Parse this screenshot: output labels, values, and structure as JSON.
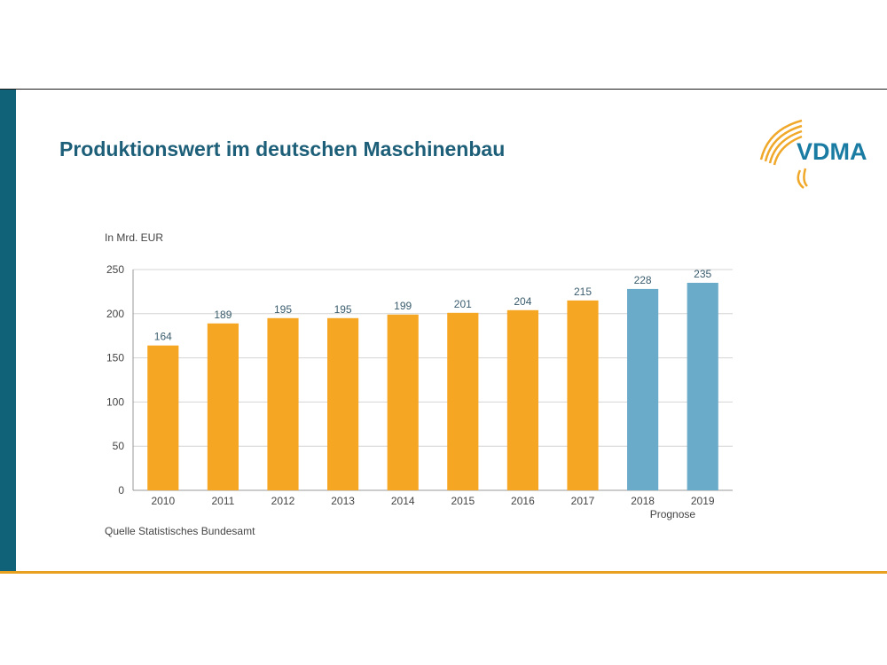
{
  "slide": {
    "title": "Produktionswert im deutschen Maschinenbau",
    "logo_text": "VDMA",
    "unit": "In Mrd. EUR",
    "source": "Quelle Statistisches Bundesamt",
    "accent_colors": {
      "sidebar": "#0f6277",
      "bottom_rule": "#e8a020",
      "title": "#1d5f78"
    }
  },
  "chart_data": {
    "type": "bar",
    "title": "Produktionswert im deutschen Maschinenbau",
    "ylabel": "In Mrd. EUR",
    "xlabel": "",
    "categories": [
      "2010",
      "2011",
      "2012",
      "2013",
      "2014",
      "2015",
      "2016",
      "2017",
      "2018",
      "2019"
    ],
    "values": [
      164,
      189,
      195,
      195,
      199,
      201,
      204,
      215,
      228,
      235
    ],
    "ylim": [
      0,
      250
    ],
    "yticks": [
      0,
      50,
      100,
      150,
      200,
      250
    ],
    "grid": true,
    "bar_colors": [
      "#f5a623",
      "#f5a623",
      "#f5a623",
      "#f5a623",
      "#f5a623",
      "#f5a623",
      "#f5a623",
      "#f5a623",
      "#6aabc9",
      "#6aabc9"
    ],
    "forecast_label": "Prognose"
  }
}
